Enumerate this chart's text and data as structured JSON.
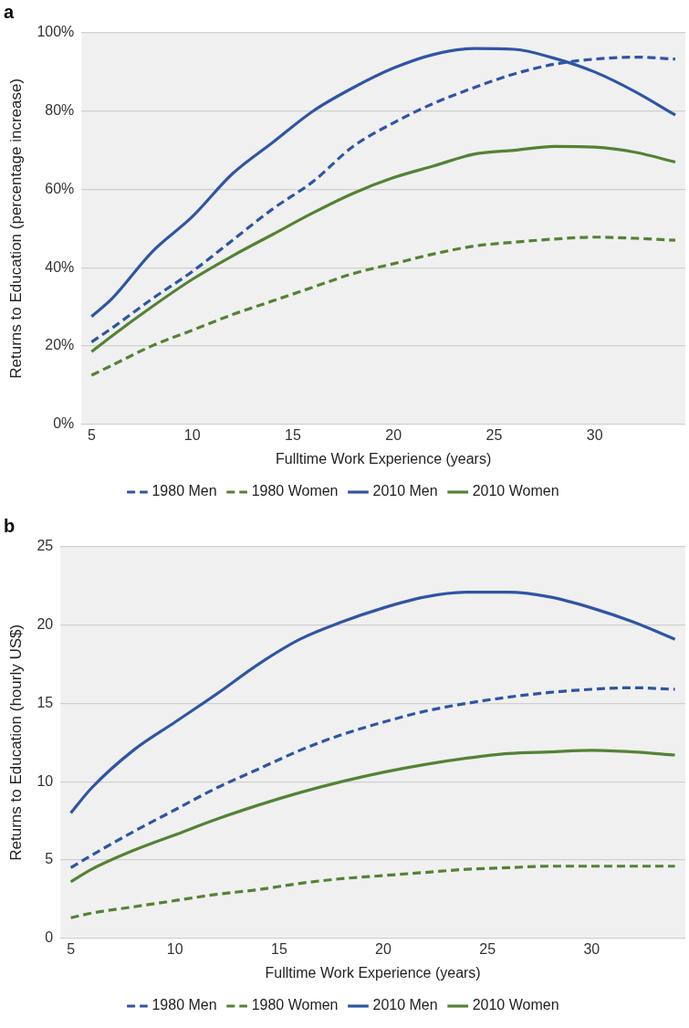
{
  "chart_data": [
    {
      "type": "line",
      "title": "a",
      "xlabel": "Fulltime Work Experience (years)",
      "ylabel": "Returns to Education (percentage increase)",
      "x": [
        5,
        6,
        8,
        10,
        12,
        14,
        16,
        18,
        20,
        22,
        24,
        26,
        28,
        30,
        32,
        34
      ],
      "xlim": [
        4.5,
        34.5
      ],
      "xticks": [
        5,
        10,
        15,
        20,
        25,
        30
      ],
      "ylim": [
        0,
        100
      ],
      "yticks": [
        {
          "value": 0,
          "label": "0%"
        },
        {
          "value": 20,
          "label": "20%"
        },
        {
          "value": 40,
          "label": "40%"
        },
        {
          "value": 60,
          "label": "60%"
        },
        {
          "value": 80,
          "label": "80%"
        },
        {
          "value": 100,
          "label": "100%"
        }
      ],
      "grid": "y",
      "legend": "bottom",
      "marker": "none",
      "series": [
        {
          "name": "1980 Men",
          "color": "#2f55a4",
          "line_style": "dashed",
          "values": [
            21,
            24.5,
            32,
            39,
            47,
            55,
            62,
            71,
            77,
            82,
            86,
            89.5,
            92,
            93.3,
            93.8,
            93.3
          ]
        },
        {
          "name": "1980 Women",
          "color": "#548235",
          "line_style": "dashed",
          "values": [
            12.5,
            15,
            20,
            24,
            28,
            31.5,
            35,
            38.5,
            41,
            43.5,
            45.5,
            46.5,
            47.3,
            47.8,
            47.5,
            47
          ]
        },
        {
          "name": "2010 Men",
          "color": "#2f55a4",
          "line_style": "solid",
          "values": [
            27.5,
            32,
            44,
            53,
            64,
            72,
            80,
            86,
            91,
            94.5,
            96,
            95.8,
            93.5,
            90,
            85,
            79
          ]
        },
        {
          "name": "2010 Women",
          "color": "#548235",
          "line_style": "solid",
          "values": [
            18.5,
            22.5,
            30,
            37,
            43,
            48.5,
            54,
            59,
            63,
            66,
            69,
            70,
            71,
            70.8,
            69.5,
            67
          ]
        }
      ]
    },
    {
      "type": "line",
      "title": "b",
      "xlabel": "Fulltime Work Experience (years)",
      "ylabel": "Returns to Education (hourly US$)",
      "x": [
        5,
        6,
        8,
        10,
        12,
        14,
        16,
        18,
        20,
        22,
        24,
        26,
        28,
        30,
        32,
        34
      ],
      "xlim": [
        4.5,
        34.5
      ],
      "xticks": [
        5,
        10,
        15,
        20,
        25,
        30
      ],
      "ylim": [
        0,
        25
      ],
      "yticks": [
        0,
        5,
        10,
        15,
        20,
        25
      ],
      "grid": "y",
      "legend": "bottom",
      "marker": "none",
      "series": [
        {
          "name": "1980 Men",
          "color": "#2f55a4",
          "line_style": "dashed",
          "values": [
            4.5,
            5.3,
            6.8,
            8.2,
            9.6,
            10.8,
            12,
            13,
            13.8,
            14.5,
            15,
            15.4,
            15.7,
            15.9,
            16,
            15.9
          ]
        },
        {
          "name": "1980 Women",
          "color": "#548235",
          "line_style": "dashed",
          "values": [
            1.3,
            1.6,
            2,
            2.4,
            2.8,
            3.1,
            3.5,
            3.8,
            4,
            4.2,
            4.4,
            4.5,
            4.6,
            4.6,
            4.6,
            4.6
          ]
        },
        {
          "name": "2010 Men",
          "color": "#2f55a4",
          "line_style": "solid",
          "values": [
            8,
            9.6,
            12,
            13.8,
            15.6,
            17.5,
            19.1,
            20.2,
            21.1,
            21.8,
            22.1,
            22.1,
            21.8,
            21.1,
            20.2,
            19.1
          ]
        },
        {
          "name": "2010 Women",
          "color": "#548235",
          "line_style": "solid",
          "values": [
            3.6,
            4.4,
            5.6,
            6.6,
            7.6,
            8.5,
            9.3,
            10,
            10.6,
            11.1,
            11.5,
            11.8,
            11.9,
            12,
            11.9,
            11.7
          ]
        }
      ]
    }
  ]
}
